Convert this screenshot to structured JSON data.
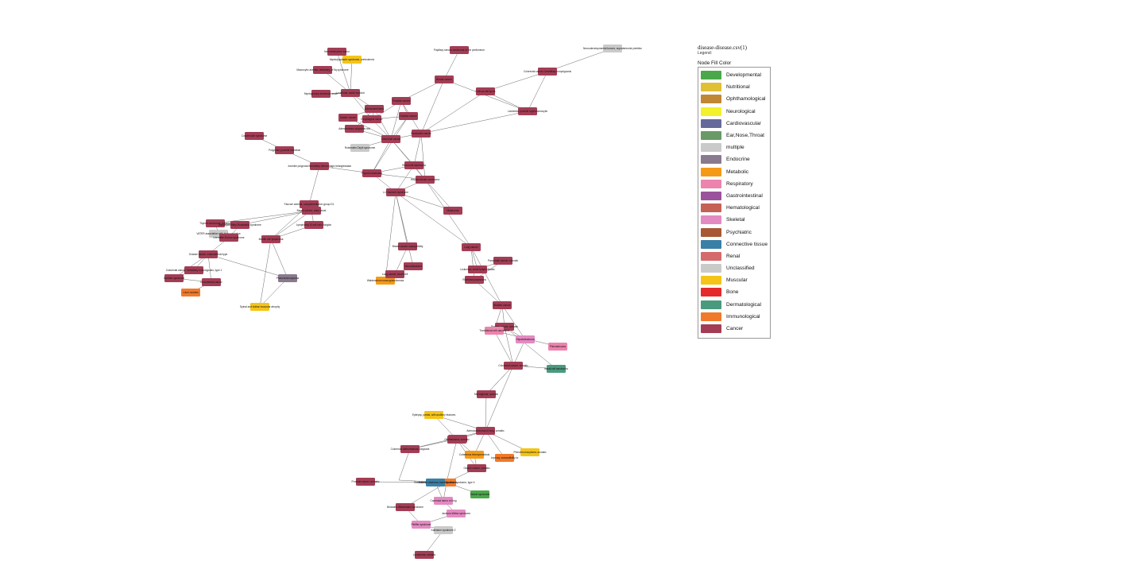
{
  "legend": {
    "title": "disease-disease.csv(1)",
    "subtitle": "Legend:",
    "heading": "Node Fill Color",
    "items": [
      {
        "label": "Developmental",
        "color": "#4aa84a"
      },
      {
        "label": "Nutritional",
        "color": "#e0bf35"
      },
      {
        "label": "Ophthamological",
        "color": "#c08834"
      },
      {
        "label": "Neurological",
        "color": "#f3f12a"
      },
      {
        "label": "Cardiovascular",
        "color": "#666a9a"
      },
      {
        "label": "Ear,Nose,Throat",
        "color": "#6a9a66"
      },
      {
        "label": "multiple",
        "color": "#cacaca"
      },
      {
        "label": "Endocrine",
        "color": "#8a7a8e"
      },
      {
        "label": "Metabolic",
        "color": "#f59a16"
      },
      {
        "label": "Respiratory",
        "color": "#ec84ad"
      },
      {
        "label": "Gastrointestinal",
        "color": "#9a529c"
      },
      {
        "label": "Hematological",
        "color": "#c46258"
      },
      {
        "label": "Skeletal",
        "color": "#e48ac2"
      },
      {
        "label": "Psychiatric",
        "color": "#a85834"
      },
      {
        "label": "Connective tissue",
        "color": "#3a80a6"
      },
      {
        "label": "Renal",
        "color": "#d46a6c"
      },
      {
        "label": "Unclassified",
        "color": "#cacaca"
      },
      {
        "label": "Muscular",
        "color": "#f4c418"
      },
      {
        "label": "Bone",
        "color": "#e42a2a"
      },
      {
        "label": "Dermatological",
        "color": "#4a9a7e"
      },
      {
        "label": "Immunological",
        "color": "#f07a2a"
      },
      {
        "label": "Cancer",
        "color": "#a33d55"
      }
    ]
  },
  "network": {
    "nodes": [
      {
        "label": "Neuroendocrine tumor",
        "category": "Cancer"
      },
      {
        "label": "Myelodysplastic syndrome, preleukemic",
        "category": "Muscular"
      },
      {
        "label": "Macrocytic anemia, refractory, of 5q syndrome",
        "category": "Cancer"
      },
      {
        "label": "Myelogenous leukemia, acute",
        "category": "Cancer"
      },
      {
        "label": "Leukemia, acute myeloid",
        "category": "Cancer"
      },
      {
        "label": "Adenocarcinoma",
        "category": "Cancer"
      },
      {
        "label": "Gastric cancer",
        "category": "Cancer"
      },
      {
        "label": "Adenomatous polyposis coli",
        "category": "Cancer"
      },
      {
        "label": "Colorectal cancer",
        "category": "Cancer"
      },
      {
        "label": "Esophageal cancer",
        "category": "Cancer"
      },
      {
        "label": "Breast cancer",
        "category": "Cancer"
      },
      {
        "label": "Prostate cancer",
        "category": "Cancer"
      },
      {
        "label": "Pancreatic cancer",
        "category": "Cancer"
      },
      {
        "label": "Ovarian cancer",
        "category": "Cancer"
      },
      {
        "label": "Thyroid carcinoma",
        "category": "Cancer"
      },
      {
        "label": "Lung cancer",
        "category": "Cancer"
      },
      {
        "label": "Hepatocellular carcinoma",
        "category": "Cancer"
      },
      {
        "label": "Renal cell carcinoma",
        "category": "Cancer"
      },
      {
        "label": "Bladder cancer",
        "category": "Cancer"
      },
      {
        "label": "Glioblastoma",
        "category": "Cancer"
      },
      {
        "label": "Melanoma",
        "category": "Cancer"
      },
      {
        "label": "Leukemia, juvenile myelomonocytic",
        "category": "Cancer"
      },
      {
        "label": "Rubinstein-Taybi syndrome",
        "category": "Unclassified"
      },
      {
        "label": "Papillary serous carcinoma of the peritoneum",
        "category": "Cancer"
      },
      {
        "label": "Cafe-au-lait spots",
        "category": "Cancer"
      },
      {
        "label": "Neurodevelopmental tumors, supratentorial primitive",
        "category": "multiple"
      },
      {
        "label": "Colorectal cancer, hereditary nonpolyposis",
        "category": "Cancer"
      },
      {
        "label": "Cowden-like syndrome",
        "category": "Cancer"
      },
      {
        "label": "Polyposis, juvenile intestinal",
        "category": "Cancer"
      },
      {
        "label": "Juvenile polyposis/hereditary hemorrhagic telangiectasia",
        "category": "Cancer"
      },
      {
        "label": "Li-Fraumeni syndrome",
        "category": "Cancer"
      },
      {
        "label": "Fanconi anemia, complementation group D1",
        "category": "Cancer"
      },
      {
        "label": "Breast cancer, early onset",
        "category": "Cancer"
      },
      {
        "label": "Breast cancer susceptibility",
        "category": "Cancer"
      },
      {
        "label": "Thyroid carcinoma, follicular",
        "category": "Cancer"
      },
      {
        "label": "VATER association with hydrocephalus",
        "category": "multiple"
      },
      {
        "label": "Bannayan-Riley-Ruvalcaba syndrome",
        "category": "Cancer"
      },
      {
        "label": "Lhermitte-Duclos syndrome",
        "category": "Cancer"
      },
      {
        "label": "Ovarian cancer, endometrioid type",
        "category": "Cancer"
      },
      {
        "label": "Colorectal cancer, hereditary nonpolyposis, type 1",
        "category": "Cancer"
      },
      {
        "label": "Gardner syndrome",
        "category": "Cancer"
      },
      {
        "label": "Endometrial cancer",
        "category": "Cancer"
      },
      {
        "label": "Lisch nodules",
        "category": "Immunological"
      },
      {
        "label": "Pheochromocytoma",
        "category": "Endocrine"
      },
      {
        "label": "Spinal and bulbar muscular atrophy",
        "category": "Muscular"
      },
      {
        "label": "Mantle cell lymphoma",
        "category": "Cancer"
      },
      {
        "label": "Lymphoma, B-cell non-Hodgkin",
        "category": "Cancer"
      },
      {
        "label": "Waldenstrom macroglobulinemia",
        "category": "Metabolic"
      },
      {
        "label": "Neuroblastoma",
        "category": "Cancer"
      },
      {
        "label": "Lung cancer, small cell",
        "category": "Cancer"
      },
      {
        "label": "Rhabdomyosarcoma",
        "category": "Cancer"
      },
      {
        "label": "Leukemia, acute lymphoblastic",
        "category": "Cancer"
      },
      {
        "label": "Pancreatic cancer, somatic",
        "category": "Cancer"
      },
      {
        "label": "Bladder cancer, somatic",
        "category": "Cancer"
      },
      {
        "label": "Transitional cell carcinoma",
        "category": "Respiratory"
      },
      {
        "label": "Hepatoblastoma",
        "category": "Skeletal"
      },
      {
        "label": "Pilomatricoma",
        "category": "Respiratory"
      },
      {
        "label": "Colorectal cancer, somatic",
        "category": "Cancer"
      },
      {
        "label": "Basal cell carcinoma",
        "category": "Dermatological"
      },
      {
        "label": "Meningioma, somatic",
        "category": "Cancer"
      },
      {
        "label": "Adenocarcinoma of lung, somatic",
        "category": "Cancer"
      },
      {
        "label": "Glioblastoma, somatic",
        "category": "Cancer"
      },
      {
        "label": "Epilepsy, partial, with auditory features",
        "category": "Muscular"
      },
      {
        "label": "Colorectal adenomatous polyposis",
        "category": "Cancer"
      },
      {
        "label": "Cutaneous leiomyomatosis",
        "category": "Metabolic"
      },
      {
        "label": "Leprosy, susceptibility to",
        "category": "Immunological"
      },
      {
        "label": "Pheochromocytoma, somatic",
        "category": "Muscular"
      },
      {
        "label": "Gastric cancer, somatic",
        "category": "Cancer"
      },
      {
        "label": "Autoimmune lymphoproliferative syndrome, type II",
        "category": "Immunological"
      },
      {
        "label": "Seckel syndrome",
        "category": "Developmental"
      },
      {
        "label": "Craniofacial-deafness-hand syndrome",
        "category": "Connective tissue"
      },
      {
        "label": "Carcinoid tumor of lung",
        "category": "Skeletal"
      },
      {
        "label": "Beckwith-Wiedemann syndrome",
        "category": "Cancer"
      },
      {
        "label": "Jackson-Weiss syndrome",
        "category": "Skeletal"
      },
      {
        "label": "Pfeiffer syndrome",
        "category": "Skeletal"
      },
      {
        "label": "Kallmann syndrome 2",
        "category": "Unclassified"
      },
      {
        "label": "Lymphoma, somatic",
        "category": "Cancer"
      },
      {
        "label": "Prostate cancer, somatic",
        "category": "Cancer"
      }
    ]
  }
}
